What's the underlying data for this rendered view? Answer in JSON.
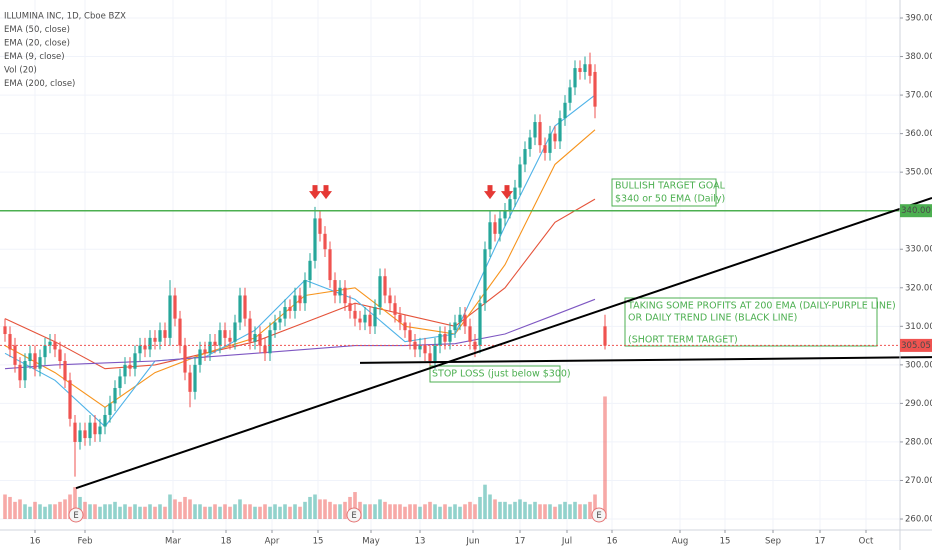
{
  "chart_data": {
    "type": "candlestick",
    "title": "ILLUMINA INC, 1D, Cboe BZX",
    "volume_name": "Vol (20)",
    "open": [
      310,
      308,
      305,
      300,
      296,
      301,
      303,
      299,
      302,
      305,
      306,
      304,
      301,
      296,
      285,
      280,
      283,
      281,
      285,
      282,
      284,
      287,
      290,
      294,
      297,
      300,
      299,
      303,
      305,
      304,
      307,
      306,
      309,
      307,
      318,
      312,
      305,
      298,
      293,
      300,
      304,
      303,
      306,
      305,
      309,
      307,
      306,
      311,
      318,
      312,
      306,
      308,
      305,
      303,
      309,
      311,
      312,
      315,
      314,
      318,
      316,
      322,
      327,
      338,
      334,
      330,
      322,
      318,
      320,
      316,
      314,
      312,
      311,
      313,
      310,
      315,
      323,
      318,
      316,
      313,
      311,
      309,
      306,
      304,
      305,
      303,
      301,
      305,
      308,
      306,
      309,
      311,
      313,
      310,
      306,
      305,
      316,
      330,
      337,
      334,
      338,
      340,
      343,
      346,
      352,
      356,
      359,
      363,
      357,
      355,
      360,
      358,
      364,
      368,
      372,
      377,
      376,
      378,
      376,
      null,
      310
    ],
    "high": [
      312,
      310,
      307,
      302,
      303,
      305,
      305,
      304,
      307,
      308,
      308,
      306,
      303,
      298,
      287,
      285,
      285,
      287,
      287,
      286,
      289,
      292,
      296,
      299,
      302,
      302,
      305,
      307,
      307,
      309,
      309,
      311,
      311,
      322,
      320,
      314,
      307,
      300,
      302,
      306,
      306,
      308,
      308,
      311,
      311,
      309,
      313,
      320,
      320,
      314,
      310,
      310,
      307,
      311,
      313,
      314,
      317,
      317,
      320,
      320,
      324,
      329,
      341,
      340,
      336,
      332,
      324,
      322,
      322,
      318,
      316,
      314,
      315,
      315,
      317,
      325,
      325,
      320,
      318,
      315,
      313,
      311,
      308,
      307,
      307,
      305,
      307,
      310,
      310,
      311,
      313,
      315,
      315,
      312,
      308,
      318,
      332,
      340,
      339,
      340,
      342,
      345,
      348,
      354,
      358,
      361,
      365,
      365,
      359,
      362,
      362,
      366,
      370,
      374,
      379,
      379,
      380,
      381,
      378,
      null,
      313
    ],
    "low": [
      306,
      302,
      298,
      294,
      294,
      299,
      297,
      297,
      300,
      303,
      302,
      299,
      294,
      284,
      271,
      278,
      279,
      279,
      280,
      280,
      282,
      285,
      288,
      292,
      295,
      297,
      297,
      301,
      302,
      302,
      304,
      304,
      305,
      305,
      310,
      303,
      296,
      289,
      291,
      298,
      301,
      301,
      303,
      303,
      305,
      304,
      304,
      309,
      310,
      304,
      304,
      303,
      301,
      301,
      307,
      309,
      310,
      312,
      312,
      314,
      314,
      320,
      325,
      332,
      328,
      320,
      316,
      316,
      314,
      312,
      310,
      309,
      309,
      308,
      308,
      313,
      316,
      314,
      311,
      309,
      307,
      304,
      302,
      302,
      301,
      299,
      299,
      303,
      304,
      304,
      307,
      309,
      308,
      304,
      302,
      303,
      314,
      328,
      332,
      332,
      336,
      338,
      341,
      344,
      350,
      354,
      357,
      355,
      353,
      353,
      356,
      356,
      362,
      366,
      370,
      374,
      374,
      373,
      364,
      null,
      304
    ],
    "close": [
      308,
      304,
      300,
      296,
      301,
      303,
      299,
      302,
      305,
      306,
      304,
      301,
      296,
      286,
      280,
      283,
      281,
      285,
      282,
      284,
      287,
      290,
      294,
      297,
      300,
      299,
      303,
      305,
      304,
      307,
      306,
      309,
      307,
      318,
      312,
      305,
      298,
      293,
      300,
      304,
      303,
      306,
      305,
      309,
      307,
      306,
      311,
      318,
      312,
      306,
      308,
      305,
      303,
      309,
      311,
      312,
      315,
      314,
      318,
      316,
      322,
      327,
      338,
      334,
      330,
      322,
      318,
      320,
      316,
      314,
      312,
      311,
      313,
      310,
      315,
      323,
      318,
      316,
      313,
      311,
      309,
      306,
      304,
      305,
      303,
      301,
      305,
      308,
      306,
      309,
      311,
      313,
      310,
      306,
      304,
      316,
      330,
      337,
      334,
      338,
      340,
      343,
      346,
      352,
      356,
      359,
      363,
      357,
      355,
      360,
      358,
      364,
      368,
      372,
      377,
      376,
      378,
      375,
      367,
      null,
      305
    ],
    "volume": [
      1.0,
      0.9,
      0.7,
      0.8,
      0.6,
      0.5,
      0.7,
      0.6,
      0.5,
      0.6,
      0.6,
      0.7,
      0.8,
      1.0,
      1.3,
      0.9,
      0.7,
      0.6,
      0.6,
      0.5,
      0.6,
      0.6,
      0.7,
      0.5,
      0.6,
      0.5,
      0.6,
      0.5,
      0.5,
      0.6,
      0.5,
      0.6,
      0.5,
      1.0,
      0.8,
      0.7,
      0.9,
      0.8,
      0.6,
      0.6,
      0.5,
      0.5,
      0.6,
      0.5,
      0.6,
      0.5,
      0.6,
      0.8,
      0.6,
      0.6,
      0.5,
      0.5,
      0.6,
      0.5,
      0.6,
      0.5,
      0.6,
      0.5,
      0.6,
      0.5,
      0.7,
      0.9,
      1.0,
      0.8,
      0.8,
      0.7,
      0.6,
      0.6,
      0.7,
      0.9,
      1.1,
      0.7,
      0.6,
      0.6,
      0.6,
      0.8,
      0.7,
      0.6,
      0.6,
      0.6,
      0.5,
      0.6,
      0.6,
      0.5,
      0.6,
      0.7,
      0.6,
      0.5,
      0.6,
      0.5,
      0.6,
      0.5,
      0.6,
      0.7,
      0.6,
      0.9,
      1.4,
      1.0,
      0.8,
      0.7,
      0.7,
      0.6,
      0.7,
      0.8,
      0.7,
      0.6,
      0.7,
      0.6,
      0.6,
      0.6,
      0.5,
      0.6,
      0.7,
      0.6,
      0.7,
      0.6,
      0.6,
      0.7,
      1.0,
      null,
      5.0
    ],
    "vlim": [
      0,
      5.1
    ],
    "up_color": "#26a69a",
    "down_color": "#ef5350",
    "series": [
      {
        "name": "EMA (50, close)",
        "color": "#e5533a",
        "x": [
          0,
          10,
          20,
          30,
          40,
          50,
          60,
          70,
          80,
          90,
          100,
          110,
          118
        ],
        "values": [
          312,
          306,
          299,
          300,
          303,
          306,
          311,
          316,
          313,
          310,
          320,
          337,
          343
        ]
      },
      {
        "name": "EMA (20, close)",
        "color": "#f7941d",
        "x": [
          0,
          10,
          20,
          30,
          40,
          50,
          60,
          70,
          80,
          90,
          100,
          110,
          118
        ],
        "values": [
          305,
          298,
          289,
          298,
          303,
          307,
          318,
          320,
          310,
          308,
          326,
          352,
          361
        ]
      },
      {
        "name": "EMA (9, close)",
        "color": "#4fb3e8",
        "x": [
          0,
          10,
          20,
          30,
          40,
          50,
          60,
          70,
          80,
          90,
          100,
          110,
          118
        ],
        "values": [
          303,
          296,
          284,
          301,
          302,
          309,
          322,
          317,
          306,
          308,
          336,
          362,
          370
        ]
      },
      {
        "name": "EMA (200, close)",
        "color": "#7e57c2",
        "x": [
          0,
          10,
          20,
          30,
          40,
          50,
          60,
          70,
          80,
          90,
          100,
          110,
          118
        ],
        "values": [
          299,
          300,
          300.5,
          301,
          302,
          303,
          304,
          305,
          305,
          305.5,
          308,
          313,
          317
        ]
      }
    ],
    "trendlines": [
      {
        "x": [
          14.2,
          185.4
        ],
        "values": [
          268,
          343.3
        ],
        "color": "#000000"
      },
      {
        "x": [
          71,
          185.4
        ],
        "values": [
          300.5,
          302
        ],
        "color": "#000000"
      }
    ],
    "levels": [
      {
        "value": 340,
        "label": "340.00",
        "color": "#4caf50",
        "style": "solid"
      },
      {
        "value": 305.05,
        "label": "305.05",
        "color": "#ef5350",
        "style": "dotted"
      }
    ],
    "arrows": {
      "x": [
        62,
        64.2,
        97,
        100.4
      ],
      "value": 343,
      "color": "#e53935"
    },
    "earnings": {
      "x": [
        14.2,
        69.8,
        118.8
      ],
      "label": "E"
    },
    "annotations": [
      {
        "lines": [
          "BULLISH TARGET GOAL",
          "$340 or 50 EMA (Daily)"
        ]
      },
      {
        "lines": [
          "TAKING SOME PROFITS AT 200 EMA (DAILY-PURPLE LINE)",
          "OR DAILY TREND LINE (BLACK LINE)",
          "(SHORT TERM TARGET)"
        ]
      },
      {
        "lines": [
          "STOP LOSS (just below $300)"
        ]
      }
    ],
    "xlim": [
      -1,
      179
    ],
    "ylim": [
      257.15,
      394.67
    ],
    "grid": true,
    "yticks": [
      {
        "value": 260,
        "label": "260.00"
      },
      {
        "value": 270,
        "label": "270.00"
      },
      {
        "value": 280,
        "label": "280.00"
      },
      {
        "value": 290,
        "label": "290.00"
      },
      {
        "value": 300,
        "label": "300.00"
      },
      {
        "value": 310,
        "label": "310.00"
      },
      {
        "value": 320,
        "label": "320.00"
      },
      {
        "value": 330,
        "label": "330.00"
      },
      {
        "value": 340,
        "label": "340.00"
      },
      {
        "value": 350,
        "label": "350.00"
      },
      {
        "value": 360,
        "label": "360.00"
      },
      {
        "value": 370,
        "label": "370.00"
      },
      {
        "value": 380,
        "label": "380.00"
      },
      {
        "value": 390,
        "label": "390.00"
      }
    ],
    "xticks": [
      {
        "value": 6,
        "label": "16"
      },
      {
        "value": 16,
        "label": "Feb"
      },
      {
        "value": 33.6,
        "label": "Mar"
      },
      {
        "value": 44.2,
        "label": "18"
      },
      {
        "value": 53.4,
        "label": "Apr"
      },
      {
        "value": 62.6,
        "label": "15"
      },
      {
        "value": 73.2,
        "label": "May"
      },
      {
        "value": 83,
        "label": "13"
      },
      {
        "value": 93.6,
        "label": "Jun"
      },
      {
        "value": 103,
        "label": "17"
      },
      {
        "value": 112.4,
        "label": "Jul"
      },
      {
        "value": 121.4,
        "label": "16"
      },
      {
        "value": 135,
        "label": "Aug"
      },
      {
        "value": 144,
        "label": "15"
      },
      {
        "value": 153.6,
        "label": "Sep"
      },
      {
        "value": 163,
        "label": "17"
      },
      {
        "value": 172.2,
        "label": "Oct"
      }
    ]
  }
}
